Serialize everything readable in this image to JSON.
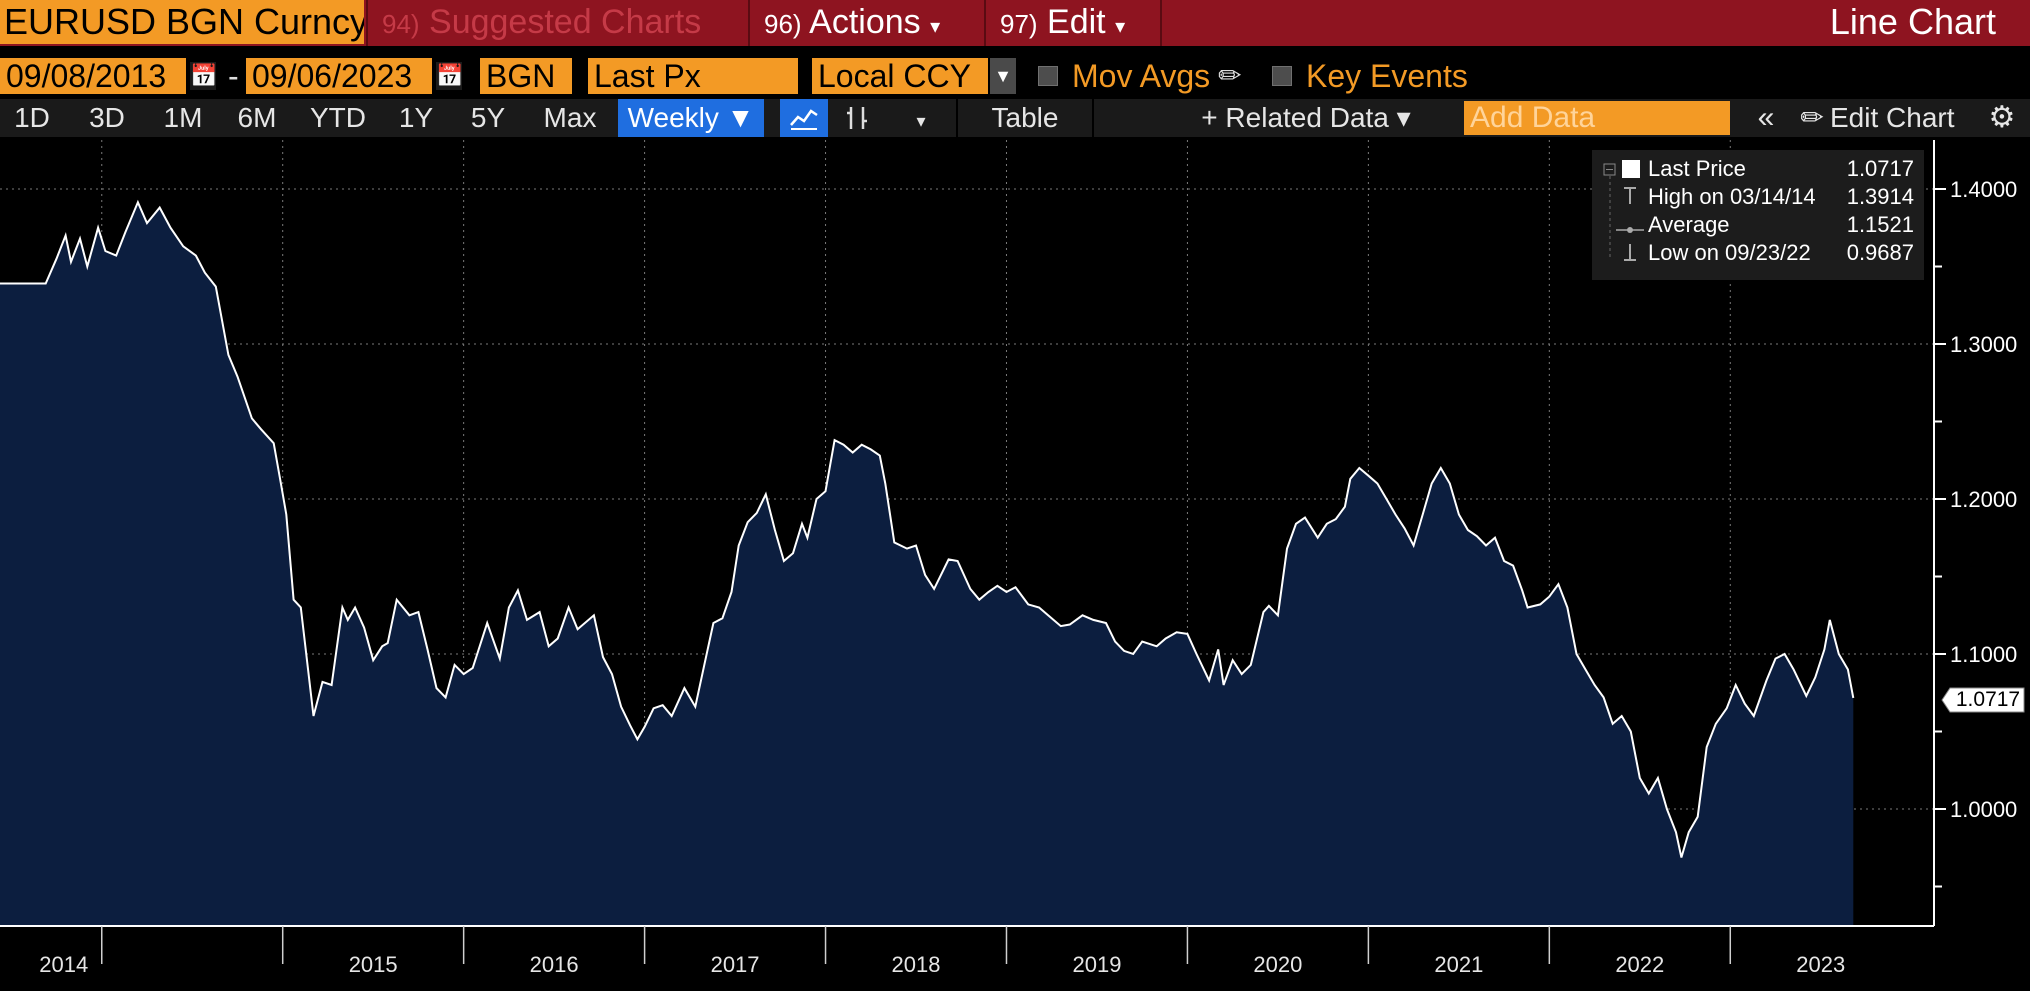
{
  "header": {
    "ticker": "EURUSD BGN Curncy",
    "suggested": {
      "num": "94)",
      "label": "Suggested Charts"
    },
    "actions": {
      "num": "96)",
      "label": "Actions"
    },
    "edit": {
      "num": "97)",
      "label": "Edit"
    },
    "view_title": "Line Chart"
  },
  "controls": {
    "start_date": "09/08/2013",
    "separator": "-",
    "end_date": "09/06/2023",
    "source": "BGN",
    "field": "Last Px",
    "currency": "Local CCY",
    "mov_avgs": "Mov Avgs",
    "key_events": "Key Events"
  },
  "toolbar": {
    "periods": [
      "1D",
      "3D",
      "1M",
      "6M",
      "YTD",
      "1Y",
      "5Y",
      "Max"
    ],
    "frequency": "Weekly ▼",
    "table": "Table",
    "related": "+ Related Data ▾",
    "add_data_placeholder": "Add Data",
    "edit_chart": "Edit Chart"
  },
  "legend": {
    "rows": [
      {
        "label": "Last Price",
        "value": "1.0717"
      },
      {
        "label": "High on 03/14/14",
        "value": "1.3914"
      },
      {
        "label": "Average",
        "value": "1.1521"
      },
      {
        "label": "Low on 09/23/22",
        "value": "0.9687"
      }
    ]
  },
  "colors": {
    "accent_orange": "#f39a25",
    "title_red": "#8e1420",
    "active_blue": "#1f6ee0",
    "area_fill": "#0c1e3f",
    "line": "#ffffff"
  },
  "chart_data": {
    "type": "area",
    "title": "",
    "xlabel": "",
    "ylabel": "",
    "ylim": [
      0.93,
      1.42
    ],
    "y_ticks": [
      "1.0000",
      "1.1000",
      "1.2000",
      "1.3000",
      "1.4000"
    ],
    "x_labels": [
      "2014",
      "2015",
      "2016",
      "2017",
      "2018",
      "2019",
      "2020",
      "2021",
      "2022",
      "2023"
    ],
    "last_value_label": "1.0717",
    "series": [
      {
        "values": [
          [
            2013.69,
            1.339
          ],
          [
            2013.75,
            1.355
          ],
          [
            2013.8,
            1.37
          ],
          [
            2013.83,
            1.353
          ],
          [
            2013.88,
            1.368
          ],
          [
            2013.92,
            1.35
          ],
          [
            2013.98,
            1.375
          ],
          [
            2014.02,
            1.36
          ],
          [
            2014.08,
            1.357
          ],
          [
            2014.13,
            1.372
          ],
          [
            2014.2,
            1.3914
          ],
          [
            2014.25,
            1.378
          ],
          [
            2014.32,
            1.388
          ],
          [
            2014.38,
            1.375
          ],
          [
            2014.45,
            1.363
          ],
          [
            2014.52,
            1.357
          ],
          [
            2014.57,
            1.346
          ],
          [
            2014.63,
            1.337
          ],
          [
            2014.7,
            1.293
          ],
          [
            2014.75,
            1.279
          ],
          [
            2014.83,
            1.252
          ],
          [
            2014.88,
            1.245
          ],
          [
            2014.95,
            1.236
          ],
          [
            2014.99,
            1.21
          ],
          [
            2015.02,
            1.19
          ],
          [
            2015.06,
            1.135
          ],
          [
            2015.1,
            1.13
          ],
          [
            2015.17,
            1.06
          ],
          [
            2015.22,
            1.082
          ],
          [
            2015.27,
            1.08
          ],
          [
            2015.33,
            1.13
          ],
          [
            2015.36,
            1.122
          ],
          [
            2015.4,
            1.13
          ],
          [
            2015.45,
            1.117
          ],
          [
            2015.5,
            1.096
          ],
          [
            2015.55,
            1.105
          ],
          [
            2015.58,
            1.107
          ],
          [
            2015.63,
            1.135
          ],
          [
            2015.7,
            1.125
          ],
          [
            2015.75,
            1.127
          ],
          [
            2015.8,
            1.103
          ],
          [
            2015.85,
            1.078
          ],
          [
            2015.9,
            1.072
          ],
          [
            2015.95,
            1.093
          ],
          [
            2016.0,
            1.087
          ],
          [
            2016.05,
            1.091
          ],
          [
            2016.13,
            1.12
          ],
          [
            2016.2,
            1.097
          ],
          [
            2016.25,
            1.13
          ],
          [
            2016.3,
            1.141
          ],
          [
            2016.35,
            1.122
          ],
          [
            2016.42,
            1.127
          ],
          [
            2016.47,
            1.105
          ],
          [
            2016.52,
            1.11
          ],
          [
            2016.58,
            1.13
          ],
          [
            2016.63,
            1.116
          ],
          [
            2016.72,
            1.125
          ],
          [
            2016.77,
            1.098
          ],
          [
            2016.82,
            1.087
          ],
          [
            2016.87,
            1.066
          ],
          [
            2016.92,
            1.054
          ],
          [
            2016.96,
            1.045
          ],
          [
            2017.0,
            1.053
          ],
          [
            2017.05,
            1.065
          ],
          [
            2017.1,
            1.067
          ],
          [
            2017.15,
            1.06
          ],
          [
            2017.22,
            1.078
          ],
          [
            2017.28,
            1.066
          ],
          [
            2017.33,
            1.093
          ],
          [
            2017.38,
            1.12
          ],
          [
            2017.43,
            1.123
          ],
          [
            2017.48,
            1.14
          ],
          [
            2017.52,
            1.17
          ],
          [
            2017.57,
            1.185
          ],
          [
            2017.62,
            1.191
          ],
          [
            2017.67,
            1.203
          ],
          [
            2017.72,
            1.18
          ],
          [
            2017.77,
            1.16
          ],
          [
            2017.82,
            1.165
          ],
          [
            2017.87,
            1.184
          ],
          [
            2017.9,
            1.175
          ],
          [
            2017.95,
            1.2
          ],
          [
            2018.0,
            1.205
          ],
          [
            2018.05,
            1.238
          ],
          [
            2018.1,
            1.235
          ],
          [
            2018.15,
            1.23
          ],
          [
            2018.2,
            1.235
          ],
          [
            2018.25,
            1.232
          ],
          [
            2018.3,
            1.228
          ],
          [
            2018.33,
            1.21
          ],
          [
            2018.38,
            1.172
          ],
          [
            2018.45,
            1.168
          ],
          [
            2018.5,
            1.17
          ],
          [
            2018.55,
            1.151
          ],
          [
            2018.6,
            1.142
          ],
          [
            2018.68,
            1.161
          ],
          [
            2018.73,
            1.16
          ],
          [
            2018.8,
            1.142
          ],
          [
            2018.85,
            1.135
          ],
          [
            2018.9,
            1.14
          ],
          [
            2018.95,
            1.144
          ],
          [
            2019.0,
            1.14
          ],
          [
            2019.05,
            1.143
          ],
          [
            2019.12,
            1.132
          ],
          [
            2019.18,
            1.13
          ],
          [
            2019.23,
            1.125
          ],
          [
            2019.3,
            1.118
          ],
          [
            2019.35,
            1.119
          ],
          [
            2019.42,
            1.125
          ],
          [
            2019.48,
            1.122
          ],
          [
            2019.55,
            1.12
          ],
          [
            2019.6,
            1.108
          ],
          [
            2019.65,
            1.102
          ],
          [
            2019.7,
            1.1
          ],
          [
            2019.75,
            1.108
          ],
          [
            2019.83,
            1.105
          ],
          [
            2019.88,
            1.11
          ],
          [
            2019.94,
            1.114
          ],
          [
            2020.0,
            1.113
          ],
          [
            2020.05,
            1.1
          ],
          [
            2020.12,
            1.083
          ],
          [
            2020.17,
            1.103
          ],
          [
            2020.2,
            1.08
          ],
          [
            2020.25,
            1.096
          ],
          [
            2020.3,
            1.087
          ],
          [
            2020.35,
            1.093
          ],
          [
            2020.42,
            1.127
          ],
          [
            2020.45,
            1.131
          ],
          [
            2020.5,
            1.125
          ],
          [
            2020.55,
            1.168
          ],
          [
            2020.6,
            1.184
          ],
          [
            2020.65,
            1.188
          ],
          [
            2020.72,
            1.175
          ],
          [
            2020.77,
            1.184
          ],
          [
            2020.82,
            1.187
          ],
          [
            2020.87,
            1.195
          ],
          [
            2020.9,
            1.213
          ],
          [
            2020.95,
            1.22
          ],
          [
            2021.0,
            1.215
          ],
          [
            2021.05,
            1.21
          ],
          [
            2021.1,
            1.2
          ],
          [
            2021.15,
            1.19
          ],
          [
            2021.2,
            1.181
          ],
          [
            2021.25,
            1.17
          ],
          [
            2021.3,
            1.19
          ],
          [
            2021.35,
            1.21
          ],
          [
            2021.4,
            1.22
          ],
          [
            2021.45,
            1.21
          ],
          [
            2021.5,
            1.19
          ],
          [
            2021.55,
            1.18
          ],
          [
            2021.6,
            1.176
          ],
          [
            2021.65,
            1.17
          ],
          [
            2021.7,
            1.175
          ],
          [
            2021.75,
            1.16
          ],
          [
            2021.8,
            1.157
          ],
          [
            2021.85,
            1.141
          ],
          [
            2021.88,
            1.13
          ],
          [
            2021.95,
            1.132
          ],
          [
            2022.0,
            1.137
          ],
          [
            2022.05,
            1.145
          ],
          [
            2022.1,
            1.13
          ],
          [
            2022.15,
            1.1
          ],
          [
            2022.2,
            1.09
          ],
          [
            2022.25,
            1.08
          ],
          [
            2022.3,
            1.072
          ],
          [
            2022.35,
            1.055
          ],
          [
            2022.4,
            1.06
          ],
          [
            2022.45,
            1.05
          ],
          [
            2022.5,
            1.02
          ],
          [
            2022.55,
            1.01
          ],
          [
            2022.6,
            1.02
          ],
          [
            2022.65,
            1.0
          ],
          [
            2022.7,
            0.985
          ],
          [
            2022.73,
            0.9687
          ],
          [
            2022.77,
            0.985
          ],
          [
            2022.82,
            0.995
          ],
          [
            2022.87,
            1.04
          ],
          [
            2022.92,
            1.055
          ],
          [
            2022.98,
            1.065
          ],
          [
            2023.03,
            1.08
          ],
          [
            2023.08,
            1.068
          ],
          [
            2023.13,
            1.06
          ],
          [
            2023.2,
            1.083
          ],
          [
            2023.25,
            1.097
          ],
          [
            2023.3,
            1.1
          ],
          [
            2023.35,
            1.09
          ],
          [
            2023.42,
            1.073
          ],
          [
            2023.47,
            1.085
          ],
          [
            2023.52,
            1.103
          ],
          [
            2023.55,
            1.122
          ],
          [
            2023.6,
            1.1
          ],
          [
            2023.65,
            1.09
          ],
          [
            2023.68,
            1.0717
          ]
        ]
      }
    ]
  }
}
